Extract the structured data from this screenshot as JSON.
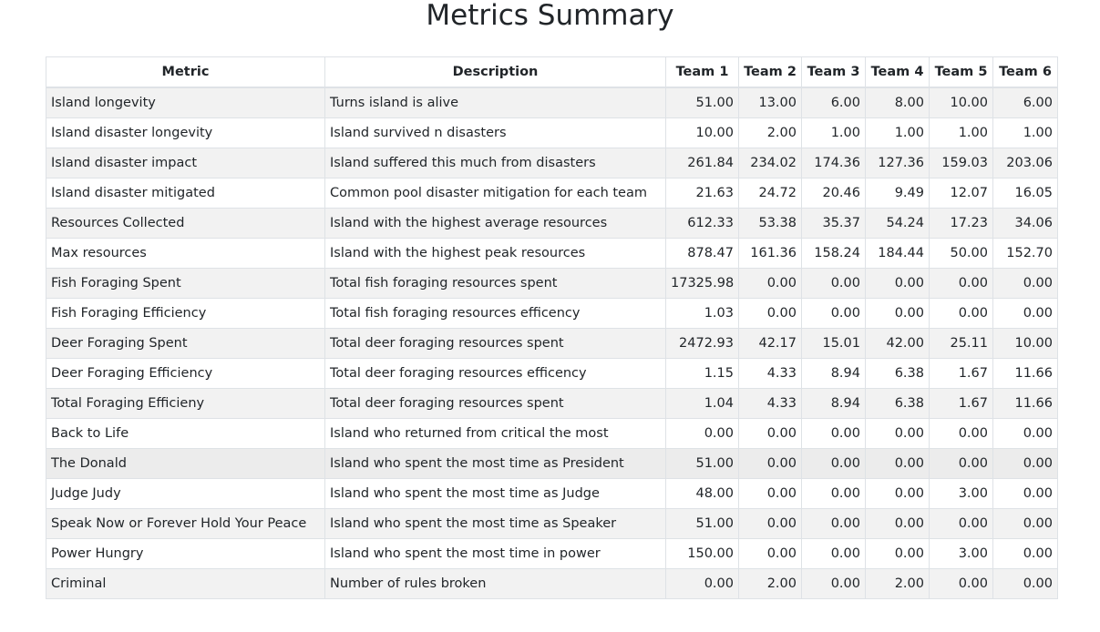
{
  "title": "Metrics Summary",
  "columns": [
    "Metric",
    "Description",
    "Team 1",
    "Team 2",
    "Team 3",
    "Team 4",
    "Team 5",
    "Team 6"
  ],
  "rows": [
    {
      "metric": "Island longevity",
      "description": "Turns island is alive",
      "values": [
        "51.00",
        "13.00",
        "6.00",
        "8.00",
        "10.00",
        "6.00"
      ]
    },
    {
      "metric": "Island disaster longevity",
      "description": "Island survived n disasters",
      "values": [
        "10.00",
        "2.00",
        "1.00",
        "1.00",
        "1.00",
        "1.00"
      ]
    },
    {
      "metric": "Island disaster impact",
      "description": "Island suffered this much from disasters",
      "values": [
        "261.84",
        "234.02",
        "174.36",
        "127.36",
        "159.03",
        "203.06"
      ]
    },
    {
      "metric": "Island disaster mitigated",
      "description": "Common pool disaster mitigation for each team",
      "values": [
        "21.63",
        "24.72",
        "20.46",
        "9.49",
        "12.07",
        "16.05"
      ]
    },
    {
      "metric": "Resources Collected",
      "description": "Island with the highest average resources",
      "values": [
        "612.33",
        "53.38",
        "35.37",
        "54.24",
        "17.23",
        "34.06"
      ]
    },
    {
      "metric": "Max resources",
      "description": "Island with the highest peak resources",
      "values": [
        "878.47",
        "161.36",
        "158.24",
        "184.44",
        "50.00",
        "152.70"
      ]
    },
    {
      "metric": "Fish Foraging Spent",
      "description": "Total fish foraging resources spent",
      "values": [
        "17325.98",
        "0.00",
        "0.00",
        "0.00",
        "0.00",
        "0.00"
      ]
    },
    {
      "metric": "Fish Foraging Efficiency",
      "description": "Total fish foraging resources efficency",
      "values": [
        "1.03",
        "0.00",
        "0.00",
        "0.00",
        "0.00",
        "0.00"
      ]
    },
    {
      "metric": "Deer Foraging Spent",
      "description": "Total deer foraging resources spent",
      "values": [
        "2472.93",
        "42.17",
        "15.01",
        "42.00",
        "25.11",
        "10.00"
      ]
    },
    {
      "metric": "Deer Foraging Efficiency",
      "description": "Total deer foraging resources efficency",
      "values": [
        "1.15",
        "4.33",
        "8.94",
        "6.38",
        "1.67",
        "11.66"
      ]
    },
    {
      "metric": "Total Foraging Efficieny",
      "description": "Total deer foraging resources spent",
      "values": [
        "1.04",
        "4.33",
        "8.94",
        "6.38",
        "1.67",
        "11.66"
      ]
    },
    {
      "metric": "Back to Life",
      "description": "Island who returned from critical the most",
      "values": [
        "0.00",
        "0.00",
        "0.00",
        "0.00",
        "0.00",
        "0.00"
      ]
    },
    {
      "metric": "The Donald",
      "description": "Island who spent the most time as President",
      "values": [
        "51.00",
        "0.00",
        "0.00",
        "0.00",
        "0.00",
        "0.00"
      ]
    },
    {
      "metric": "Judge Judy",
      "description": "Island who spent the most time as Judge",
      "values": [
        "48.00",
        "0.00",
        "0.00",
        "0.00",
        "3.00",
        "0.00"
      ]
    },
    {
      "metric": "Speak Now or Forever Hold Your Peace",
      "description": "Island who spent the most time as Speaker",
      "values": [
        "51.00",
        "0.00",
        "0.00",
        "0.00",
        "0.00",
        "0.00"
      ]
    },
    {
      "metric": "Power Hungry",
      "description": "Island who spent the most time in power",
      "values": [
        "150.00",
        "0.00",
        "0.00",
        "0.00",
        "3.00",
        "0.00"
      ]
    },
    {
      "metric": "Criminal",
      "description": "Number of rules broken",
      "values": [
        "0.00",
        "2.00",
        "0.00",
        "2.00",
        "0.00",
        "0.00"
      ]
    }
  ]
}
